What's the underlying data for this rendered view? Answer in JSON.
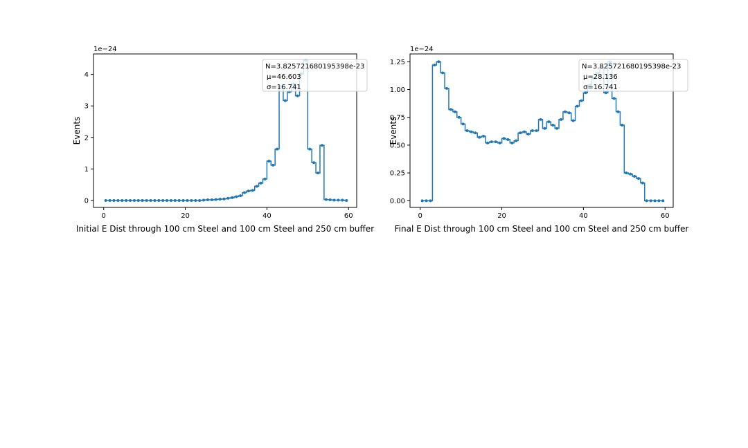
{
  "chart_data": [
    {
      "type": "line",
      "step": "mid",
      "markers": "dot",
      "color": "#1f77b4",
      "xlabel": "Initial E Dist through 100 cm Steel and 100 cm Steel and 250 cm buffer",
      "ylabel": "Events",
      "scale_label": "1e−24",
      "xlim": [
        -2.5,
        62.0
      ],
      "ylim": [
        -0.22,
        4.65
      ],
      "xticks": [
        0,
        20,
        40,
        60
      ],
      "yticks": [
        0,
        1,
        2,
        3,
        4
      ],
      "ytick_labels": [
        "0",
        "1",
        "2",
        "3",
        "4"
      ],
      "grid": false,
      "stats_box": {
        "lines": [
          "N=3.825721680195398e-23",
          "μ=46.603",
          "σ=16.741"
        ],
        "placement": "top-right"
      },
      "x": [
        0.5,
        1.5,
        2.5,
        3.5,
        4.5,
        5.5,
        6.5,
        7.5,
        8.5,
        9.5,
        10.5,
        11.5,
        12.5,
        13.5,
        14.5,
        15.5,
        16.5,
        17.5,
        18.5,
        19.5,
        20.5,
        21.5,
        22.5,
        23.5,
        24.5,
        25.5,
        26.5,
        27.5,
        28.5,
        29.5,
        30.5,
        31.5,
        32.5,
        33.5,
        34.5,
        35.5,
        36.5,
        37.5,
        38.5,
        39.5,
        40.5,
        41.5,
        42.5,
        43.5,
        44.5,
        45.5,
        46.5,
        47.5,
        48.5,
        49.5,
        50.5,
        51.5,
        52.5,
        53.5,
        54.5,
        55.5,
        56.5,
        57.5,
        58.5,
        59.5
      ],
      "y": [
        0,
        0,
        0,
        0,
        0,
        0,
        0,
        0,
        0,
        0,
        0,
        0,
        0,
        0,
        0,
        0,
        0,
        0,
        0,
        0,
        0,
        0,
        0,
        0,
        0.01,
        0.02,
        0.02,
        0.03,
        0.04,
        0.05,
        0.07,
        0.09,
        0.12,
        0.15,
        0.25,
        0.3,
        0.32,
        0.45,
        0.55,
        0.68,
        1.25,
        1.12,
        1.63,
        3.62,
        3.17,
        3.45,
        3.7,
        3.32,
        4.02,
        4.45,
        1.63,
        1.2,
        0.87,
        1.75,
        0.03,
        0.02,
        0.01,
        0.01,
        0.01,
        0.0
      ]
    },
    {
      "type": "line",
      "step": "mid",
      "markers": "dot",
      "color": "#1f77b4",
      "xlabel": "Final E Dist through 100 cm Steel and 100 cm Steel and 250 cm buffer",
      "ylabel": "Events",
      "scale_label": "1e−24",
      "xlim": [
        -2.5,
        62.0
      ],
      "ylim": [
        -0.06,
        1.32
      ],
      "xticks": [
        0,
        20,
        40,
        60
      ],
      "yticks": [
        0,
        0.25,
        0.5,
        0.75,
        1.0,
        1.25
      ],
      "ytick_labels": [
        "0.00",
        "0.25",
        "0.50",
        "0.75",
        "1.00",
        "1.25"
      ],
      "grid": false,
      "stats_box": {
        "lines": [
          "N=3.825721680195398e-23",
          "μ=28.136",
          "σ=16.741"
        ],
        "placement": "top-right"
      },
      "x": [
        0.5,
        1.5,
        2.5,
        3.5,
        4.5,
        5.5,
        6.5,
        7.5,
        8.5,
        9.5,
        10.5,
        11.5,
        12.5,
        13.5,
        14.5,
        15.5,
        16.5,
        17.5,
        18.5,
        19.5,
        20.5,
        21.5,
        22.5,
        23.5,
        24.5,
        25.5,
        26.5,
        27.5,
        28.5,
        29.5,
        30.5,
        31.5,
        32.5,
        33.5,
        34.5,
        35.5,
        36.5,
        37.5,
        38.5,
        39.5,
        40.5,
        41.5,
        42.5,
        43.5,
        44.5,
        45.5,
        46.5,
        47.5,
        48.5,
        49.5,
        50.5,
        51.5,
        52.5,
        53.5,
        54.5,
        55.5,
        56.5,
        57.5,
        58.5,
        59.5
      ],
      "y": [
        0,
        0,
        0,
        1.22,
        1.25,
        1.15,
        1.01,
        0.82,
        0.8,
        0.75,
        0.69,
        0.63,
        0.62,
        0.61,
        0.57,
        0.58,
        0.52,
        0.53,
        0.53,
        0.52,
        0.56,
        0.55,
        0.52,
        0.54,
        0.61,
        0.62,
        0.6,
        0.63,
        0.63,
        0.73,
        0.65,
        0.71,
        0.68,
        0.65,
        0.73,
        0.8,
        0.79,
        0.72,
        0.85,
        0.9,
        0.97,
        1.04,
        1.1,
        1.15,
        1.2,
        0.97,
        1.25,
        0.92,
        0.8,
        0.68,
        0.25,
        0.24,
        0.22,
        0.2,
        0.16,
        0,
        0,
        0,
        0,
        0
      ]
    }
  ]
}
